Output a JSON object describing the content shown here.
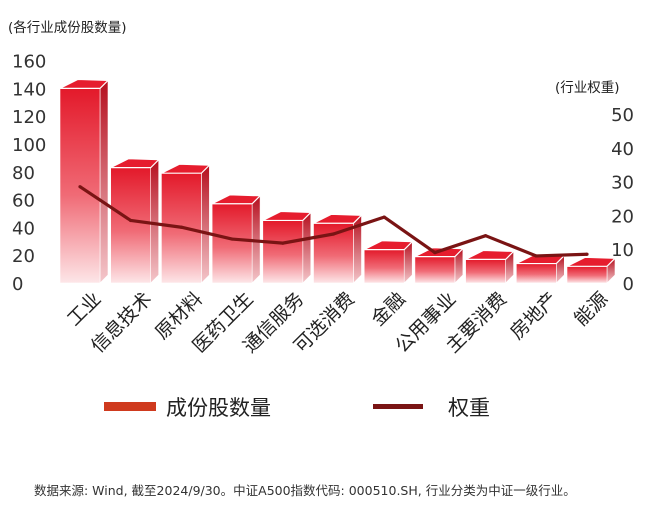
{
  "chart_data": {
    "type": "bar",
    "left_axis_label": "(各行业成份股数量)",
    "right_axis_label": "(行业权重)",
    "categories": [
      "工业",
      "信息技术",
      "原材料",
      "医药卫生",
      "通信服务",
      "可选消费",
      "金融",
      "公用事业",
      "主要消费",
      "房地产",
      "能源"
    ],
    "series": [
      {
        "name": "成份股数量",
        "kind": "bar",
        "axis": "left",
        "color": "#e0202e",
        "values": [
          140,
          83,
          79,
          57,
          45,
          43,
          24,
          19,
          17,
          14,
          12
        ]
      },
      {
        "name": "权重",
        "kind": "line",
        "axis": "right",
        "color": "#7a1414",
        "values": [
          28.5,
          18.5,
          16.5,
          13,
          11.8,
          14.5,
          19.5,
          9,
          14,
          8,
          8.5
        ]
      }
    ],
    "left_ticks": [
      0,
      20,
      40,
      60,
      80,
      100,
      120,
      140,
      160
    ],
    "right_ticks": [
      0,
      10,
      20,
      30,
      40,
      50
    ],
    "ylim_left": [
      0,
      160
    ],
    "ylim_right": [
      0,
      55
    ],
    "legend_position": "bottom"
  },
  "legend": {
    "bar_label": "成份股数量",
    "line_label": "权重"
  },
  "footnote": "数据来源: Wind, 截至2024/9/30。中证A500指数代码: 000510.SH, 行业分类为中证一级行业。"
}
